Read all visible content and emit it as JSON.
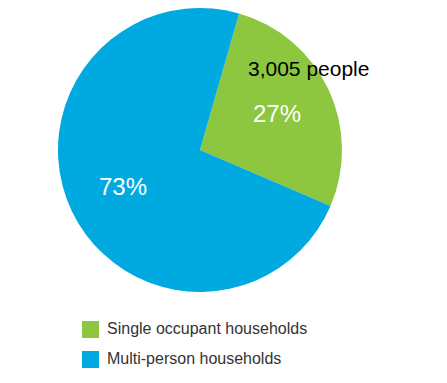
{
  "chart_data": {
    "type": "pie",
    "categories": [
      "Single occupant households",
      "Multi-person households"
    ],
    "values": [
      27,
      73
    ],
    "value_labels": [
      "27%",
      "73%"
    ],
    "colors": [
      "#8dc63f",
      "#00a9e0"
    ],
    "data_labels": true,
    "legend": "bottom-left",
    "annotation": "3,005 people"
  }
}
